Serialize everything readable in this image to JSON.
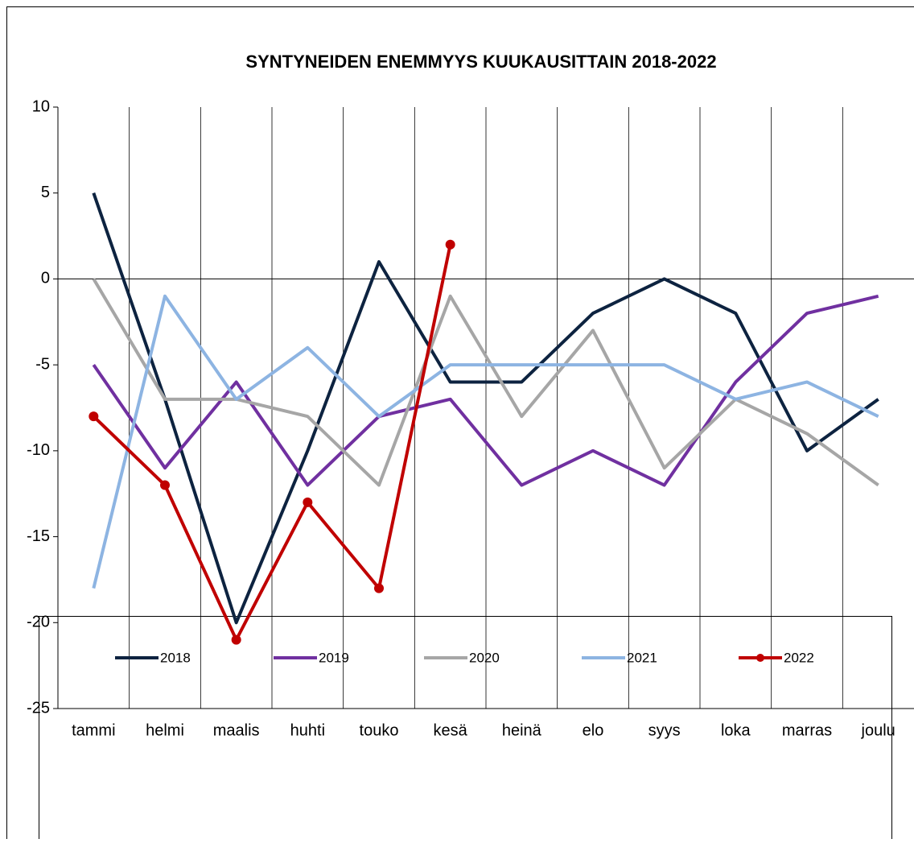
{
  "chart_data": {
    "type": "line",
    "title": "SYNTYNEIDEN ENEMMYYS KUUKAUSITTAIN 2018-2022",
    "categories": [
      "tammi",
      "helmi",
      "maalis",
      "huhti",
      "touko",
      "kesä",
      "heinä",
      "elo",
      "syys",
      "loka",
      "marras",
      "joulu"
    ],
    "series": [
      {
        "name": "2018",
        "color": "#0d2340",
        "marker": false,
        "values": [
          5,
          -7,
          -20,
          -10,
          1,
          -6,
          -6,
          -2,
          0,
          -2,
          -10,
          -7
        ]
      },
      {
        "name": "2019",
        "color": "#7030a0",
        "marker": false,
        "values": [
          -5,
          -11,
          -6,
          -12,
          -8,
          -7,
          -12,
          -10,
          -12,
          -6,
          -2,
          -1
        ]
      },
      {
        "name": "2020",
        "color": "#a6a6a6",
        "marker": false,
        "values": [
          0,
          -7,
          -7,
          -8,
          -12,
          -1,
          -8,
          -3,
          -11,
          -7,
          -9,
          -12
        ]
      },
      {
        "name": "2021",
        "color": "#8db4e2",
        "marker": false,
        "values": [
          -18,
          -1,
          -7,
          -4,
          -8,
          -5,
          -5,
          -5,
          -5,
          -7,
          -6,
          -8
        ]
      },
      {
        "name": "2022",
        "color": "#c00000",
        "marker": true,
        "values": [
          -8,
          -12,
          -21,
          -13,
          -18,
          2,
          null,
          null,
          null,
          null,
          null,
          null
        ]
      }
    ],
    "ylim": [
      -25,
      10
    ],
    "yticks": [
      -25,
      -20,
      -15,
      -10,
      -5,
      0,
      5,
      10
    ],
    "grid": "x",
    "legend": "bottom"
  }
}
